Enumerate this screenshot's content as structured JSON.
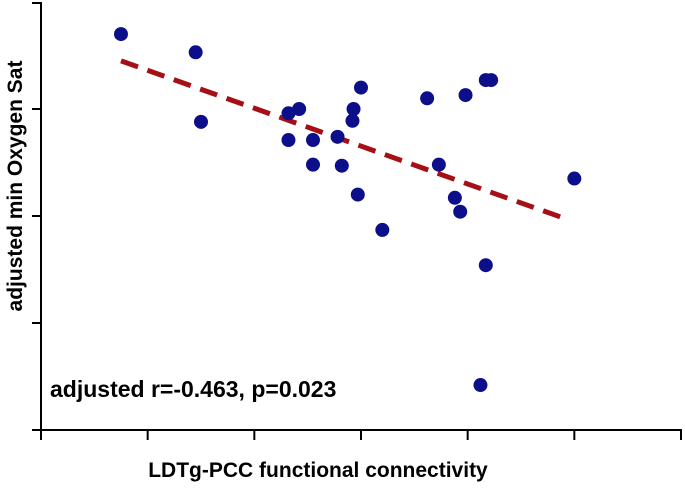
{
  "chart_data": {
    "type": "scatter",
    "title": "",
    "xlabel": "LDTg-PCC functional connectivity",
    "ylabel": "adjusted min Oxygen Sat",
    "annotation": "adjusted r=-0.463, p=0.023",
    "x_tick_labels_shown": false,
    "y_tick_labels_shown": false,
    "xlim": [
      0,
      6
    ],
    "ylim": [
      0,
      4
    ],
    "x_ticks": [
      0,
      1,
      2,
      3,
      4,
      5,
      6
    ],
    "y_ticks": [
      0,
      1,
      2,
      3,
      4
    ],
    "grid": false,
    "colors": {
      "points": "#0d0f8a",
      "trendline": "#a50f15",
      "axes": "#000000"
    },
    "series": [
      {
        "kind": "points",
        "points": [
          {
            "x": 0.75,
            "y": 3.7
          },
          {
            "x": 1.45,
            "y": 3.53
          },
          {
            "x": 1.5,
            "y": 2.88
          },
          {
            "x": 2.32,
            "y": 2.96
          },
          {
            "x": 2.42,
            "y": 3.0
          },
          {
            "x": 2.32,
            "y": 2.71
          },
          {
            "x": 2.55,
            "y": 2.71
          },
          {
            "x": 2.55,
            "y": 2.48
          },
          {
            "x": 2.78,
            "y": 2.74
          },
          {
            "x": 2.82,
            "y": 2.47
          },
          {
            "x": 2.92,
            "y": 2.89
          },
          {
            "x": 2.93,
            "y": 3.0
          },
          {
            "x": 3.0,
            "y": 3.2
          },
          {
            "x": 2.97,
            "y": 2.2
          },
          {
            "x": 3.2,
            "y": 1.87
          },
          {
            "x": 3.62,
            "y": 3.1
          },
          {
            "x": 3.73,
            "y": 2.48
          },
          {
            "x": 3.88,
            "y": 2.17
          },
          {
            "x": 3.93,
            "y": 2.04
          },
          {
            "x": 3.98,
            "y": 3.13
          },
          {
            "x": 4.17,
            "y": 3.27
          },
          {
            "x": 4.22,
            "y": 3.27
          },
          {
            "x": 4.17,
            "y": 1.54
          },
          {
            "x": 4.12,
            "y": 0.42
          },
          {
            "x": 5.0,
            "y": 2.35
          }
        ]
      },
      {
        "kind": "trendline",
        "points": [
          {
            "x": 0.75,
            "y": 3.45
          },
          {
            "x": 4.93,
            "y": 1.97
          }
        ]
      }
    ]
  }
}
